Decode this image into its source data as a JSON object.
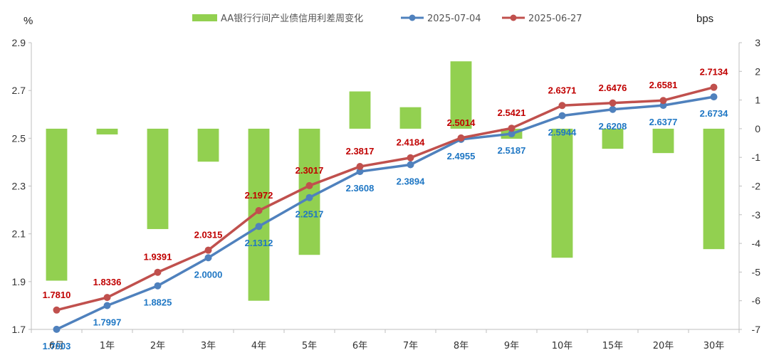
{
  "chart_data": {
    "type": "bar+line",
    "left_unit": "%",
    "right_unit": "bps",
    "categories": [
      "6月",
      "1年",
      "2年",
      "3年",
      "4年",
      "5年",
      "6年",
      "7年",
      "8年",
      "9年",
      "10年",
      "15年",
      "20年",
      "30年"
    ],
    "left_axis": {
      "min": 1.7,
      "max": 2.9,
      "ticks": [
        "1.7",
        "1.9",
        "2.1",
        "2.3",
        "2.5",
        "2.7",
        "2.9"
      ]
    },
    "right_axis": {
      "min": -7,
      "max": 3,
      "ticks": [
        "-7",
        "-6",
        "-5",
        "-4",
        "-3",
        "-2",
        "-1",
        "0",
        "1",
        "2",
        "3"
      ]
    },
    "bar_series": {
      "name": "AA银行行间产业债信用利差周变化",
      "color": "#92d050",
      "axis": "right",
      "values": [
        -5.3,
        -0.2,
        -3.5,
        -1.15,
        -6.0,
        -4.4,
        1.3,
        0.75,
        2.35,
        -0.35,
        -4.5,
        -0.7,
        -0.85,
        -4.2
      ]
    },
    "line_series": [
      {
        "name": "2025-07-04",
        "color": "#4f81bd",
        "label_color": "#1f77c4",
        "axis": "left",
        "values": [
          1.7003,
          1.7997,
          1.8825,
          2.0,
          2.1312,
          2.2517,
          2.3608,
          2.3894,
          2.4955,
          2.5187,
          2.5944,
          2.6208,
          2.6377,
          2.6734
        ],
        "labels": [
          "1.7003",
          "1.7997",
          "1.8825",
          "2.0000",
          "2.1312",
          "2.2517",
          "2.3608",
          "2.3894",
          "2.4955",
          "2.5187",
          "2.5944",
          "2.6208",
          "2.6377",
          "2.6734"
        ]
      },
      {
        "name": "2025-06-27",
        "color": "#c0504d",
        "label_color": "#c00000",
        "axis": "left",
        "values": [
          1.781,
          1.8336,
          1.9391,
          2.0315,
          2.1972,
          2.3017,
          2.3817,
          2.4184,
          2.5014,
          2.5421,
          2.6371,
          2.6476,
          2.6581,
          2.7134
        ],
        "labels": [
          "1.7810",
          "1.8336",
          "1.9391",
          "2.0315",
          "2.1972",
          "2.3017",
          "2.3817",
          "2.4184",
          "2.5014",
          "2.5421",
          "2.6371",
          "2.6476",
          "2.6581",
          "2.7134"
        ]
      }
    ]
  }
}
